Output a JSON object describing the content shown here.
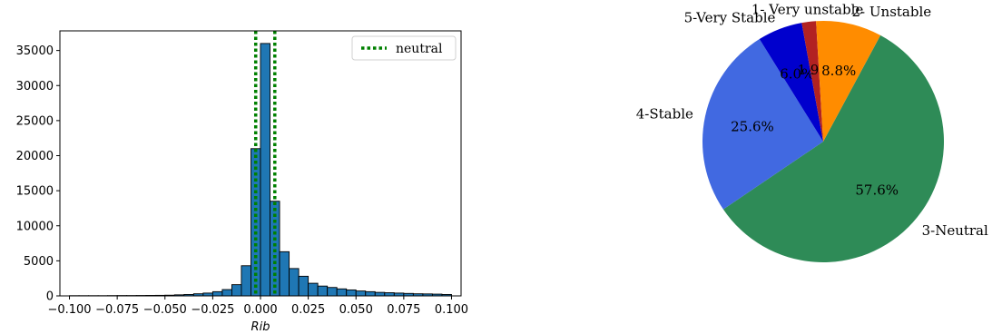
{
  "chart_data": [
    {
      "type": "bar",
      "subtype": "histogram",
      "xlabel": "Rib",
      "ylabel": "",
      "title": "",
      "xlim": [
        -0.105,
        0.105
      ],
      "ylim": [
        0,
        37800
      ],
      "xticks": [
        -0.1,
        -0.075,
        -0.05,
        -0.025,
        0.0,
        0.025,
        0.05,
        0.075,
        0.1
      ],
      "xtick_labels": [
        "−0.100",
        "−0.075",
        "−0.050",
        "−0.025",
        "0.000",
        "0.025",
        "0.050",
        "0.075",
        "0.100"
      ],
      "yticks": [
        0,
        5000,
        10000,
        15000,
        20000,
        25000,
        30000,
        35000
      ],
      "ytick_labels": [
        "0",
        "5000",
        "10000",
        "15000",
        "20000",
        "25000",
        "30000",
        "35000"
      ],
      "bin_width": 0.005,
      "bin_edges_start": -0.1,
      "values": [
        30,
        30,
        30,
        30,
        40,
        50,
        50,
        60,
        70,
        80,
        100,
        150,
        200,
        300,
        400,
        600,
        900,
        1600,
        4300,
        21000,
        36000,
        13500,
        6300,
        3900,
        2800,
        1800,
        1400,
        1200,
        1000,
        850,
        700,
        600,
        500,
        450,
        400,
        350,
        300,
        280,
        250,
        200
      ],
      "bar_color": "#1f77b4",
      "reference_lines": [
        {
          "name": "neutral",
          "x": -0.0025,
          "style": "dotted",
          "color": "#008000"
        },
        {
          "name": "neutral",
          "x": 0.0075,
          "style": "dotted",
          "color": "#008000"
        }
      ],
      "legend": {
        "placement": "top-right",
        "entries": [
          "neutral"
        ]
      },
      "grid": false
    },
    {
      "type": "pie",
      "title": "",
      "slices": [
        {
          "label": "3-Neutral",
          "value": 57.6,
          "pct_label": "57.6%",
          "color": "#2e8b57"
        },
        {
          "label": "4-Stable",
          "value": 25.6,
          "pct_label": "25.6%",
          "color": "#4169e1"
        },
        {
          "label": "5-Very Stable",
          "value": 6.0,
          "pct_label": "6.0%",
          "color": "#0000cd"
        },
        {
          "label": "1- Very unstable",
          "value": 1.9,
          "pct_label": "1.9%",
          "color": "#b22222"
        },
        {
          "label": "2- Unstable",
          "value": 8.8,
          "pct_label": "8.8%",
          "color": "#ff8c00"
        }
      ]
    }
  ]
}
